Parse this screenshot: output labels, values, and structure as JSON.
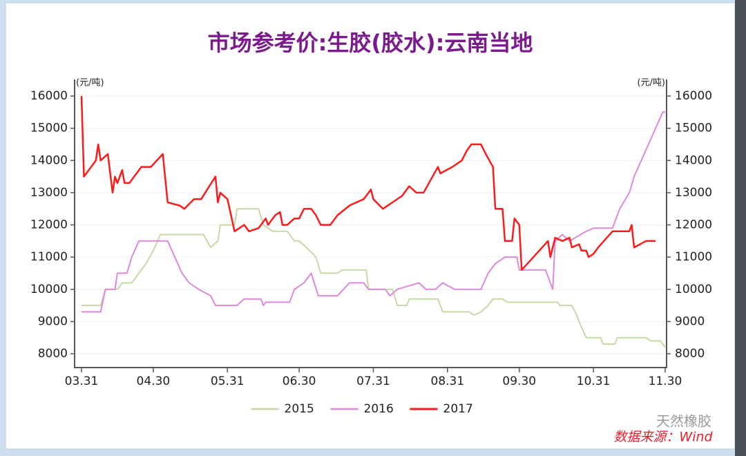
{
  "chart_data": {
    "type": "line",
    "title": "市场参考价:生胶(胶水):云南当地",
    "y_unit": "(元/吨)",
    "y2_unit": "(元/吨)",
    "ylim": [
      8000,
      16000
    ],
    "yticks": [
      8000,
      9000,
      10000,
      11000,
      12000,
      13000,
      14000,
      15000,
      16000
    ],
    "y2lim": [
      8000,
      16000
    ],
    "y2ticks": [
      8000,
      9000,
      10000,
      11000,
      12000,
      13000,
      14000,
      15000,
      16000
    ],
    "xlim": [
      "03.31",
      "11.30"
    ],
    "xticks": [
      "03.31",
      "04.30",
      "05.31",
      "06.30",
      "07.31",
      "08.31",
      "09.30",
      "10.31",
      "11.30"
    ],
    "grid": true,
    "legend": "bottom",
    "series": [
      {
        "name": "2015",
        "color": "#c6d8a6",
        "x": [
          "03.31",
          "04.08",
          "04.10",
          "04.15",
          "04.17",
          "04.21",
          "04.24",
          "04.27",
          "04.30",
          "05.03",
          "05.21",
          "05.24",
          "05.27",
          "05.28",
          "06.03",
          "06.04",
          "06.13",
          "06.15",
          "06.19",
          "06.25",
          "06.28",
          "06.30",
          "07.03",
          "07.07",
          "07.09",
          "07.16",
          "07.18",
          "07.28",
          "07.29",
          "08.08",
          "08.10",
          "08.14",
          "08.15",
          "08.27",
          "08.29",
          "09.09",
          "09.11",
          "09.14",
          "09.17",
          "09.19",
          "09.23",
          "09.25",
          "10.16",
          "10.17",
          "10.22",
          "10.24",
          "10.25",
          "10.28",
          "11.03",
          "11.04",
          "11.09",
          "11.10",
          "11.22",
          "11.24",
          "11.28",
          "11.30"
        ],
        "values": [
          9500,
          9500,
          10000,
          10000,
          10200,
          10200,
          10500,
          10800,
          11200,
          11700,
          11700,
          11300,
          11500,
          12000,
          12000,
          12500,
          12500,
          12000,
          11800,
          11800,
          11500,
          11500,
          11300,
          11000,
          10500,
          10500,
          10600,
          10600,
          10000,
          10000,
          9500,
          9500,
          9700,
          9700,
          9300,
          9300,
          9200,
          9300,
          9500,
          9700,
          9700,
          9600,
          9600,
          9500,
          9500,
          9200,
          9000,
          8500,
          8500,
          8300,
          8300,
          8500,
          8500,
          8400,
          8400,
          8200
        ]
      },
      {
        "name": "2016",
        "color": "#dd88dd",
        "x": [
          "03.31",
          "04.08",
          "04.10",
          "04.14",
          "04.15",
          "04.19",
          "04.21",
          "04.24",
          "05.06",
          "05.09",
          "05.12",
          "05.15",
          "05.19",
          "05.24",
          "05.26",
          "06.04",
          "06.07",
          "06.14",
          "06.15",
          "06.16",
          "06.26",
          "06.28",
          "07.02",
          "07.05",
          "07.08",
          "07.16",
          "07.21",
          "07.27",
          "07.29",
          "08.05",
          "08.07",
          "08.10",
          "08.19",
          "08.22",
          "08.26",
          "08.29",
          "09.03",
          "09.14",
          "09.17",
          "09.20",
          "09.24",
          "09.29",
          "09.30",
          "10.11",
          "10.14",
          "10.15",
          "10.18",
          "10.21",
          "10.28",
          "10.31",
          "11.08",
          "11.11",
          "11.15",
          "11.17",
          "11.20",
          "11.23",
          "11.26",
          "11.29",
          "11.30"
        ],
        "values": [
          9300,
          9300,
          10000,
          10000,
          10500,
          10500,
          11000,
          11500,
          11500,
          11000,
          10500,
          10200,
          10000,
          9800,
          9500,
          9500,
          9700,
          9700,
          9500,
          9600,
          9600,
          10000,
          10200,
          10500,
          9800,
          9800,
          10200,
          10200,
          10000,
          10000,
          9800,
          10000,
          10200,
          10000,
          10000,
          10200,
          10000,
          10000,
          10500,
          10800,
          11000,
          11000,
          10600,
          10600,
          10000,
          11500,
          11700,
          11500,
          11800,
          11900,
          11900,
          12500,
          13000,
          13500,
          14000,
          14500,
          15000,
          15500,
          15500
        ]
      },
      {
        "name": "2017",
        "color": "#ff1a1a",
        "x": [
          "03.31",
          "04.01",
          "04.06",
          "04.07",
          "04.08",
          "04.11",
          "04.13",
          "04.14",
          "04.15",
          "04.17",
          "04.18",
          "04.20",
          "04.25",
          "04.29",
          "05.04",
          "05.06",
          "05.11",
          "05.13",
          "05.17",
          "05.20",
          "05.26",
          "05.27",
          "05.28",
          "05.31",
          "06.03",
          "06.07",
          "06.09",
          "06.13",
          "06.16",
          "06.17",
          "06.20",
          "06.22",
          "06.23",
          "06.25",
          "06.28",
          "06.30",
          "07.02",
          "07.05",
          "07.07",
          "07.09",
          "07.13",
          "07.16",
          "07.21",
          "07.27",
          "07.30",
          "07.31",
          "08.04",
          "08.08",
          "08.12",
          "08.15",
          "08.18",
          "08.21",
          "08.24",
          "08.27",
          "08.28",
          "09.02",
          "09.06",
          "09.08",
          "09.10",
          "09.14",
          "09.16",
          "09.19",
          "09.20",
          "09.23",
          "09.24",
          "09.27",
          "09.28",
          "09.30",
          "10.01",
          "10.12",
          "10.13",
          "10.15",
          "10.18",
          "10.21",
          "10.22",
          "10.25",
          "10.26",
          "10.28",
          "10.29",
          "10.31",
          "11.02",
          "11.08",
          "11.15",
          "11.16",
          "11.17",
          "11.22",
          "11.26"
        ],
        "values": [
          16000,
          13500,
          14000,
          14500,
          14000,
          14200,
          13000,
          13500,
          13300,
          13700,
          13300,
          13300,
          13800,
          13800,
          14200,
          12700,
          12600,
          12500,
          12800,
          12800,
          13500,
          12700,
          13000,
          12800,
          11800,
          12000,
          11800,
          11900,
          12200,
          12000,
          12300,
          12400,
          12000,
          12000,
          12200,
          12200,
          12500,
          12500,
          12300,
          12000,
          12000,
          12300,
          12600,
          12800,
          13100,
          12800,
          12500,
          12700,
          12900,
          13200,
          13000,
          13000,
          13400,
          13800,
          13600,
          13800,
          14000,
          14300,
          14500,
          14500,
          14200,
          13800,
          12500,
          12500,
          11500,
          11500,
          12200,
          12000,
          10600,
          11500,
          11000,
          11600,
          11500,
          11600,
          11300,
          11400,
          11200,
          11200,
          11000,
          11100,
          11300,
          11800,
          11800,
          12000,
          11300,
          11500,
          11500
        ]
      }
    ],
    "watermark": "天然橡胶",
    "source": "数据来源：Wind"
  }
}
